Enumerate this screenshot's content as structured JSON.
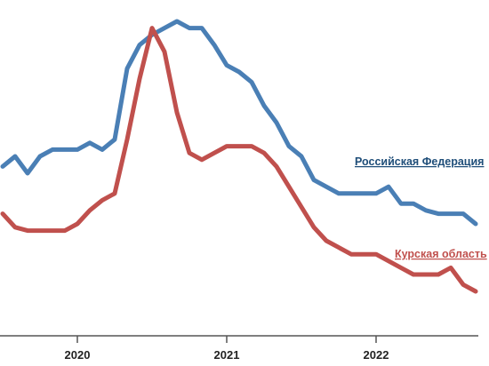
{
  "chart_data": {
    "type": "line",
    "xlabel": "",
    "ylabel": "",
    "title": "",
    "x_ticks": [
      "2020",
      "2021",
      "2022"
    ],
    "x_tick_positions": [
      0,
      12,
      24
    ],
    "xlim": [
      -6,
      32
    ],
    "ylim": [
      0,
      100
    ],
    "grid": false,
    "legend": "inline labels at right end of lines",
    "series": [
      {
        "name": "Российская Федерация",
        "color": "#4a7fb5",
        "x": [
          -6,
          -5,
          -4,
          -3,
          -2,
          -1,
          0,
          1,
          2,
          3,
          4,
          5,
          6,
          7,
          8,
          9,
          10,
          11,
          12,
          13,
          14,
          15,
          16,
          17,
          18,
          19,
          20,
          21,
          22,
          23,
          24,
          25,
          26,
          27,
          28,
          29,
          30,
          31,
          32
        ],
        "values": [
          52,
          55,
          50,
          55,
          57,
          57,
          57,
          59,
          57,
          60,
          81,
          88,
          91,
          93,
          95,
          93,
          93,
          88,
          82,
          80,
          77,
          70,
          65,
          58,
          55,
          48,
          46,
          44,
          44,
          44,
          44,
          46,
          41,
          41,
          39,
          38,
          38,
          38,
          35
        ]
      },
      {
        "name": "Курская область",
        "color": "#c0504d",
        "x": [
          -6,
          -5,
          -4,
          -3,
          -2,
          -1,
          0,
          1,
          2,
          3,
          4,
          5,
          6,
          7,
          8,
          9,
          10,
          11,
          12,
          13,
          14,
          15,
          16,
          17,
          18,
          19,
          20,
          21,
          22,
          23,
          24,
          25,
          26,
          27,
          28,
          29,
          30,
          31,
          32
        ],
        "values": [
          38,
          34,
          33,
          33,
          33,
          33,
          35,
          39,
          42,
          44,
          60,
          78,
          93,
          86,
          68,
          56,
          54,
          56,
          58,
          58,
          58,
          56,
          52,
          46,
          40,
          34,
          30,
          28,
          26,
          26,
          26,
          24,
          22,
          20,
          20,
          20,
          22,
          17,
          15
        ]
      }
    ]
  }
}
